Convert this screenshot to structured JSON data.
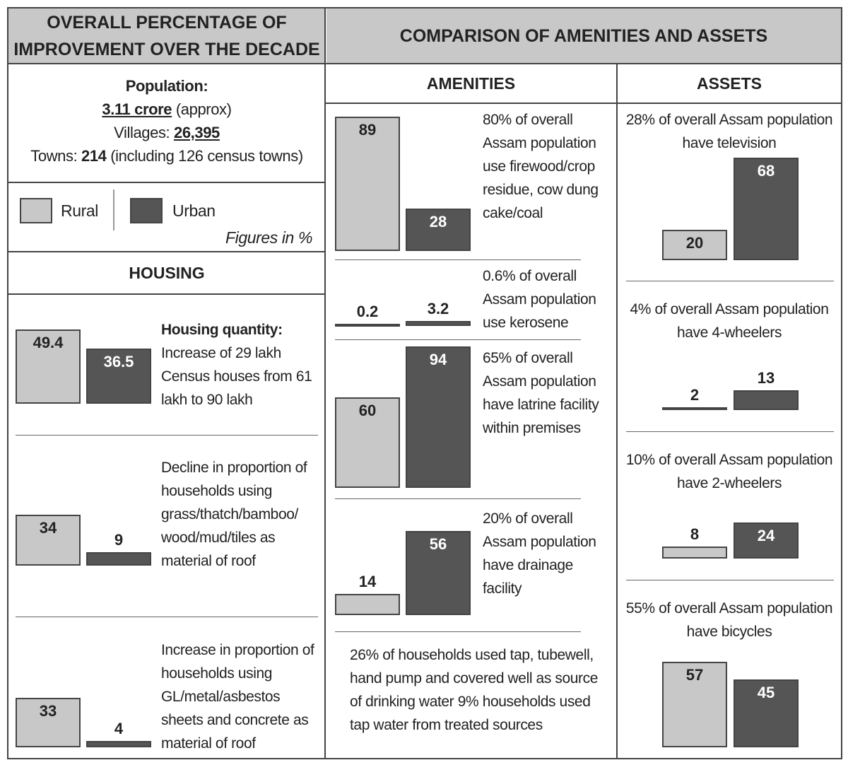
{
  "header": {
    "left_title": "OVERALL PERCENTAGE OF IMPROVEMENT OVER THE DECADE",
    "right_title": "COMPARISON OF AMENITIES AND ASSETS"
  },
  "summary": {
    "population_label": "Population:",
    "population": "3.11 crore",
    "population_note": "(approx)",
    "villages_label": "Villages:",
    "villages": "26,395",
    "towns_label": "Towns:",
    "towns": "214",
    "towns_note": "(including 126 census towns)"
  },
  "legend": {
    "rural": "Rural",
    "urban": "Urban",
    "note": "Figures in %",
    "rural_color": "#c8c8c8",
    "urban_color": "#555555"
  },
  "housing": {
    "title": "HOUSING",
    "items": [
      {
        "heading": "Housing quantity:",
        "text": "Increase of 29 lakh Census houses from 61 lakh to 90 lakh",
        "rural": 49.4,
        "urban": 36.5
      },
      {
        "text": "Decline in proportion of households using grass/thatch/bamboo/ wood/mud/tiles as material of roof",
        "rural": 34,
        "urban": 9
      },
      {
        "text": "Increase in proportion of households using GL/metal/asbestos sheets and concrete as material of roof",
        "rural": 33,
        "urban": 4
      }
    ]
  },
  "amenities": {
    "title": "AMENITIES",
    "items": [
      {
        "text": "80% of overall Assam population use firewood/crop residue, cow dung cake/coal",
        "rural": 89,
        "urban": 28
      },
      {
        "text": "0.6% of overall Assam population use kerosene",
        "rural": 0.2,
        "urban": 3.2
      },
      {
        "text": "65% of overall Assam population have latrine facility within premises",
        "rural": 60,
        "urban": 94
      },
      {
        "text": "20% of overall Assam population have drainage facility",
        "rural": 14,
        "urban": 56
      }
    ],
    "note": "26% of households used tap, tubewell, hand pump and covered well as source of drinking water 9% households used tap water from treated sources"
  },
  "assets": {
    "title": "ASSETS",
    "items": [
      {
        "text": "28% of overall Assam population have television",
        "rural": 20,
        "urban": 68
      },
      {
        "text": "4% of overall Assam population have 4-wheelers",
        "rural": 2,
        "urban": 13
      },
      {
        "text": "10% of overall Assam population have 2-wheelers",
        "rural": 8,
        "urban": 24
      },
      {
        "text": "55% of overall Assam population have bicycles",
        "rural": 57,
        "urban": 45
      }
    ]
  }
}
